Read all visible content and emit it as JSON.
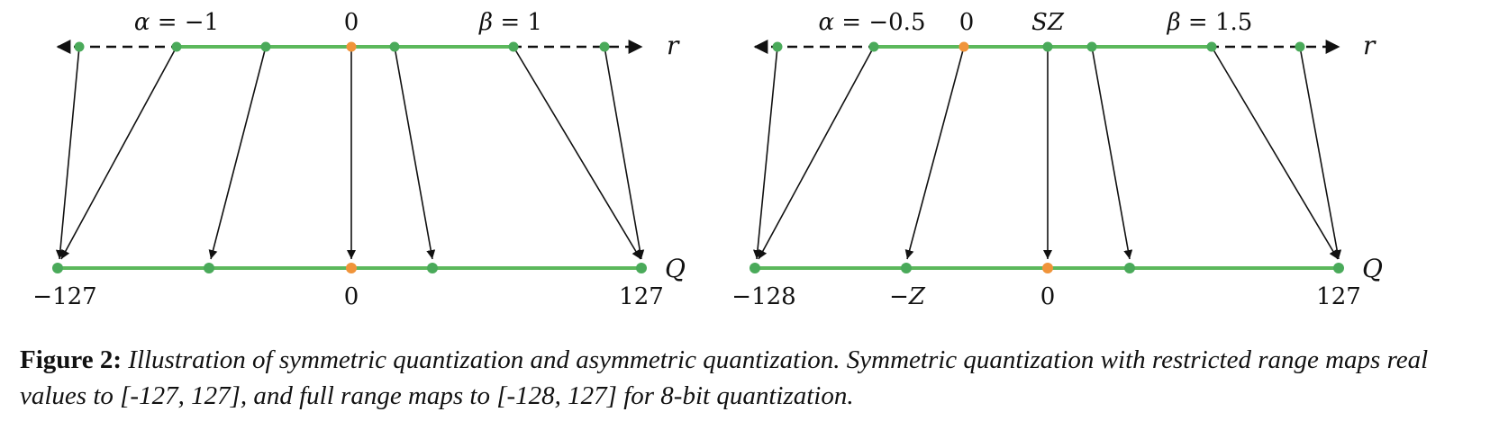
{
  "colors": {
    "line_green": "#5cb85c",
    "point_green": "#4aaa5a",
    "point_orange": "#f0943a",
    "arrow": "#111111"
  },
  "panels": [
    {
      "name": "symmetric",
      "real_axis_label": "r",
      "quant_axis_label": "Q",
      "top_labels": [
        {
          "math": "α = ",
          "num": "−1"
        },
        {
          "math": "",
          "num": "0"
        },
        {
          "math": "β = ",
          "num": "1"
        }
      ],
      "bottom_labels": [
        "−127",
        "0",
        "127"
      ]
    },
    {
      "name": "asymmetric",
      "real_axis_label": "r",
      "quant_axis_label": "Q",
      "top_labels": [
        {
          "math": "α = ",
          "num": "−0.5"
        },
        {
          "math": "",
          "num": "0"
        },
        {
          "math": "SZ",
          "num": ""
        },
        {
          "math": "β = ",
          "num": "1.5"
        }
      ],
      "bottom_labels": [
        "−128",
        "−Z",
        "0",
        "127"
      ]
    }
  ],
  "caption": {
    "label": "Figure 2:",
    "text": "Illustration of symmetric quantization and asymmetric quantization. Symmetric quantization with restricted range maps real values to [-127, 127], and full range maps to [-128, 127] for 8-bit quantization."
  }
}
